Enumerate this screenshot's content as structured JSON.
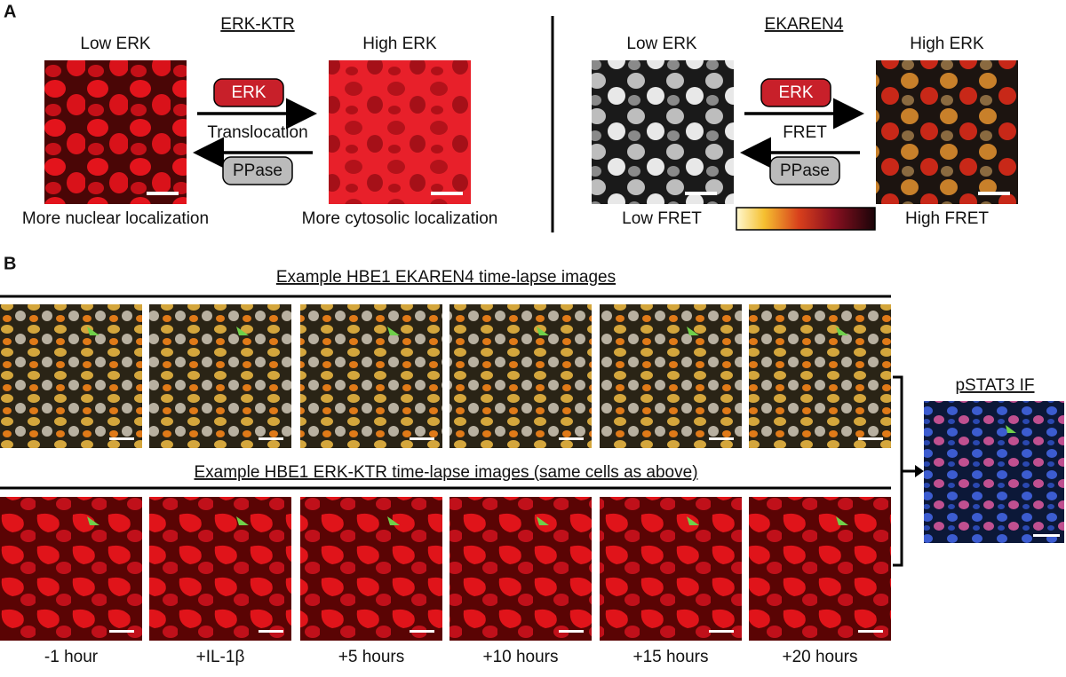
{
  "panel_a": {
    "label": "A",
    "erk_ktr": {
      "title": "ERK-KTR",
      "low": "Low ERK",
      "high": "High ERK",
      "kinase": "ERK",
      "process": "Translocation",
      "phosphatase": "PPase",
      "low_caption": "More nuclear localization",
      "high_caption": "More cytosolic localization"
    },
    "ekaren4": {
      "title": "EKAREN4",
      "low": "Low ERK",
      "high": "High ERK",
      "kinase": "ERK",
      "process": "FRET",
      "phosphatase": "PPase",
      "low_caption": "Low FRET",
      "high_caption": "High FRET"
    }
  },
  "panel_b": {
    "label": "B",
    "ekaren4_title": "Example HBE1 EKAREN4 time-lapse images",
    "ktr_title": "Example HBE1 ERK-KTR time-lapse images (same cells as above)",
    "timepoints": [
      "-1 hour",
      "+IL-1β",
      "+5 hours",
      "+10 hours",
      "+15 hours",
      "+20 hours"
    ],
    "if_title": "pSTAT3 IF"
  }
}
